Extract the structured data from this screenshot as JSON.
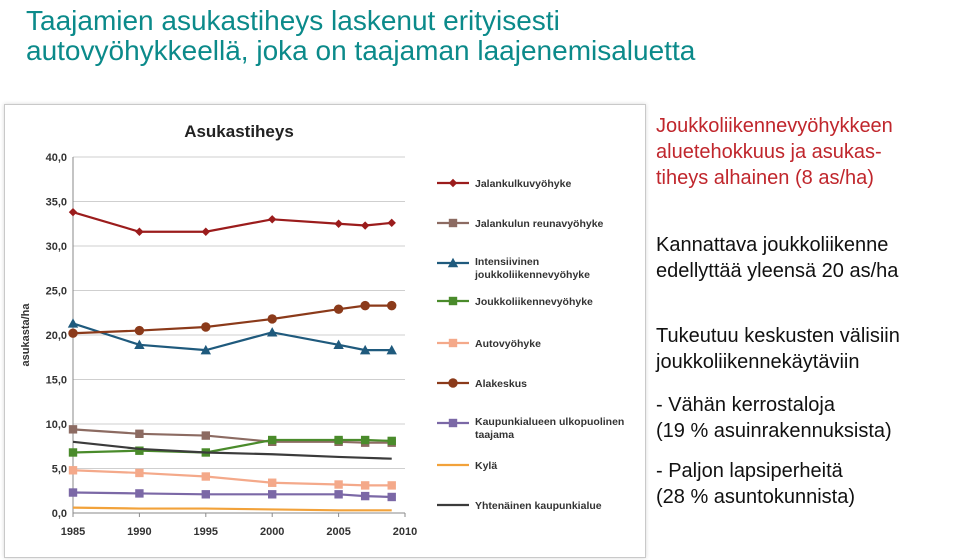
{
  "slide": {
    "title_line1": "Taajamien asukastiheys laskenut erityisesti",
    "title_line2": "autovyöhykkeellä, joka on taajaman laajenemisaluetta",
    "side_red": [
      "Joukkoliikennevyöhykkeen",
      "aluetehokkuus ja asukas-",
      "tiheys alhainen (8 as/ha)"
    ],
    "side_p2": [
      "Kannattava joukkoliikenne",
      "edellyttää yleensä 20 as/ha"
    ],
    "side_p3": [
      "Tukeutuu keskusten välisiin",
      "joukkoliikennekäytäviin"
    ],
    "side_p4": [
      "- Vähän kerrostaloja",
      "(19 % asuinrakennuksista)"
    ],
    "side_p5": [
      "- Paljon lapsiperheitä",
      "(28 % asuntokunnista)"
    ]
  },
  "chart_data": {
    "type": "line",
    "title": "Asukastiheys",
    "ylabel": "asukasta/ha",
    "xlabel": "",
    "ylim": [
      0,
      40
    ],
    "yticks": [
      "0,0",
      "5,0",
      "10,0",
      "15,0",
      "20,0",
      "25,0",
      "30,0",
      "35,0",
      "40,0"
    ],
    "x": [
      1985,
      1990,
      1995,
      2000,
      2005,
      2007,
      2009
    ],
    "xticks": [
      "1985",
      "1990",
      "1995",
      "2000",
      "2005",
      "2010"
    ],
    "xtick_values": [
      1985,
      1990,
      1995,
      2000,
      2005,
      2010
    ],
    "xlim": [
      1985,
      2010
    ],
    "grid": "horizontal",
    "legend_position": "right",
    "series": [
      {
        "name": "Jalankulkuvyöhyke",
        "color": "#9b1c1c",
        "marker": "diamond",
        "values": [
          33.8,
          31.6,
          31.6,
          33.0,
          32.5,
          32.3,
          32.6
        ]
      },
      {
        "name": "Jalankulun reunavyöhyke",
        "color": "#8c6b62",
        "marker": "square",
        "values": [
          9.4,
          8.9,
          8.7,
          8.0,
          8.0,
          7.9,
          7.9
        ]
      },
      {
        "name": "Intensiivinen joukkoliikennevyöhyke",
        "color": "#1f5a7d",
        "marker": "triangle",
        "values": [
          21.3,
          18.9,
          18.3,
          20.3,
          18.9,
          18.3,
          18.3
        ]
      },
      {
        "name": "Joukkoliikennevyöhyke",
        "color": "#4a8b2b",
        "marker": "square",
        "values": [
          6.8,
          7.0,
          6.8,
          8.2,
          8.2,
          8.2,
          8.1
        ]
      },
      {
        "name": "Autovyöhyke",
        "color": "#f4a98a",
        "marker": "square",
        "values": [
          4.8,
          4.5,
          4.1,
          3.4,
          3.2,
          3.1,
          3.1
        ]
      },
      {
        "name": "Alakeskus",
        "color": "#8b3a1a",
        "marker": "circle",
        "values": [
          20.2,
          20.5,
          20.9,
          21.8,
          22.9,
          23.3,
          23.3
        ]
      },
      {
        "name": "Kaupunkialueen ulkopuolinen taajama",
        "color": "#7b68a6",
        "marker": "square",
        "values": [
          2.3,
          2.2,
          2.1,
          2.1,
          2.1,
          1.9,
          1.8
        ]
      },
      {
        "name": "Kylä",
        "color": "#f2a23a",
        "marker": "none",
        "values": [
          0.6,
          0.5,
          0.5,
          0.4,
          0.3,
          0.3,
          0.3
        ]
      },
      {
        "name": "Yhtenäinen kaupunkialue",
        "color": "#3b3b3b",
        "marker": "none",
        "values": [
          8.0,
          7.2,
          6.8,
          6.6,
          6.3,
          6.2,
          6.1
        ]
      }
    ]
  }
}
